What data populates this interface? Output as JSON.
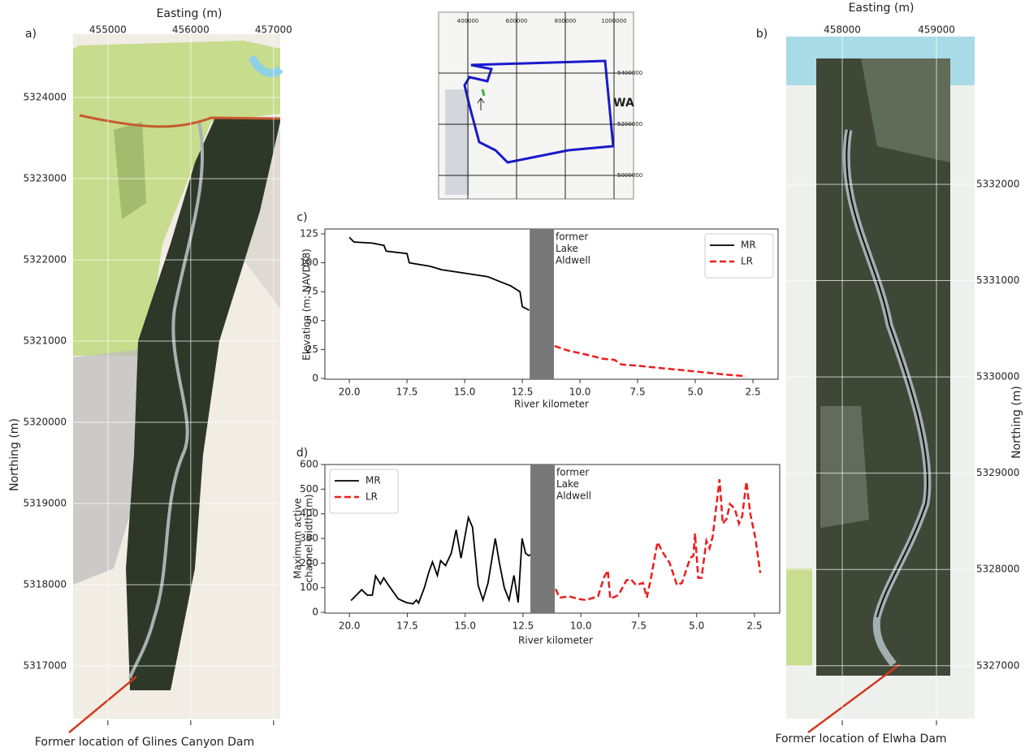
{
  "chart_data": [
    {
      "type": "map",
      "panel_label": "a)",
      "xlabel": "Easting (m)",
      "ylabel": "Northing (m)",
      "xlim": [
        454580,
        457080
      ],
      "ylim": [
        5316350,
        5324780
      ],
      "xticks": [
        455000,
        456000,
        457000
      ],
      "yticks": [
        5317000,
        5318000,
        5319000,
        5320000,
        5321000,
        5322000,
        5323000,
        5324000
      ],
      "annotation": "Former location of Glines Canyon Dam"
    },
    {
      "type": "map",
      "annotation": "WA",
      "xlim": [
        280000,
        1080000
      ],
      "ylim": [
        4908000,
        5638000
      ],
      "xticks": [
        400000,
        600000,
        800000,
        1000000
      ],
      "yticks": [
        5000000,
        5200000,
        5400000
      ]
    },
    {
      "type": "line",
      "panel_label": "c)",
      "xlabel": "River kilometer",
      "ylabel": [
        "Elevation (m; NAVD88)"
      ],
      "xlim": [
        21.06,
        1.41
      ],
      "ylim": [
        -0.7,
        129.2
      ],
      "xticks": [
        {
          "value": 20,
          "label": "20.0"
        },
        17.5,
        {
          "value": 15,
          "label": "15.0"
        },
        12.5,
        {
          "value": 10,
          "label": "10.0"
        },
        7.5,
        {
          "value": 5,
          "label": "5.0"
        },
        2.5
      ],
      "yticks": [
        0,
        25,
        50,
        75,
        100,
        125
      ],
      "span": [
        12.18,
        11.13
      ],
      "span_label": [
        "former",
        "Lake",
        "Aldwell"
      ],
      "legend": "upper right",
      "series": [
        {
          "name": "MR",
          "color": "#000000",
          "linestyle": "solid",
          "x": [
            20.0,
            19.8,
            19.0,
            18.5,
            18.4,
            17.5,
            17.4,
            16.5,
            16.0,
            15.0,
            14.0,
            13.5,
            13.0,
            12.6,
            12.5,
            12.2
          ],
          "values": [
            122,
            118,
            117,
            115,
            110,
            108,
            100,
            97,
            94,
            91,
            88,
            84,
            80,
            75,
            62,
            59
          ]
        },
        {
          "name": "LR",
          "color": "#ee1c1c",
          "linestyle": "dashed",
          "x": [
            11.1,
            10.5,
            9.8,
            9.0,
            8.5,
            8.2,
            7.5,
            6.5,
            5.5,
            4.5,
            3.5,
            2.8
          ],
          "values": [
            28,
            24,
            21,
            17,
            16,
            12,
            11,
            9,
            7,
            5,
            3,
            2
          ]
        }
      ]
    },
    {
      "type": "line",
      "panel_label": "d)",
      "xlabel": "River kilometer",
      "ylabel": [
        "Maximum active",
        "channel width (m)"
      ],
      "xlim": [
        21.06,
        1.41
      ],
      "ylim": [
        -3,
        600
      ],
      "xticks": [
        {
          "value": 20,
          "label": "20.0"
        },
        17.5,
        {
          "value": 15,
          "label": "15.0"
        },
        12.5,
        {
          "value": 10,
          "label": "10.0"
        },
        7.5,
        {
          "value": 5,
          "label": "5.0"
        },
        2.5
      ],
      "yticks": [
        0,
        100,
        200,
        300,
        400,
        500,
        600
      ],
      "span": [
        12.18,
        11.13
      ],
      "span_label": [
        "former",
        "Lake",
        "Aldwell"
      ],
      "legend": "upper left",
      "series": [
        {
          "name": "MR",
          "color": "#000000",
          "linestyle": "solid",
          "x": [
            19.93,
            19.47,
            19.23,
            19.01,
            18.87,
            18.66,
            18.52,
            18.31,
            17.89,
            17.54,
            17.25,
            17.11,
            17.01,
            16.76,
            16.58,
            16.41,
            16.2,
            16.06,
            15.85,
            15.6,
            15.39,
            15.18,
            14.86,
            14.68,
            14.44,
            14.23,
            14.01,
            13.7,
            13.52,
            13.31,
            13.1,
            12.89,
            12.71,
            12.54,
            12.39,
            12.25,
            12.08
          ],
          "values": [
            48,
            92,
            70,
            70,
            148,
            115,
            140,
            110,
            55,
            40,
            35,
            50,
            38,
            100,
            160,
            205,
            150,
            210,
            190,
            240,
            335,
            220,
            385,
            345,
            110,
            50,
            120,
            300,
            200,
            100,
            50,
            150,
            40,
            300,
            240,
            230,
            240
          ]
        },
        {
          "name": "LR",
          "color": "#ee1c1c",
          "linestyle": "dashed",
          "x": [
            11.09,
            10.92,
            10.49,
            10.14,
            9.79,
            9.26,
            9.01,
            8.84,
            8.73,
            8.38,
            8.03,
            7.85,
            7.61,
            7.32,
            7.15,
            6.97,
            6.69,
            6.44,
            6.16,
            5.85,
            5.63,
            5.28,
            5.14,
            5.07,
            4.93,
            4.79,
            4.58,
            4.44,
            4.3,
            4.15,
            4.01,
            3.87,
            3.7,
            3.56,
            3.35,
            3.17,
            3.03,
            2.85,
            2.68,
            2.46,
            2.25
          ],
          "values": [
            95,
            60,
            65,
            55,
            50,
            65,
            140,
            170,
            55,
            70,
            130,
            135,
            110,
            120,
            60,
            140,
            285,
            240,
            200,
            110,
            120,
            220,
            230,
            320,
            140,
            140,
            290,
            260,
            310,
            430,
            540,
            360,
            380,
            440,
            420,
            360,
            390,
            530,
            400,
            300,
            160
          ]
        }
      ]
    },
    {
      "type": "map",
      "panel_label": "b)",
      "xlabel": "Easting (m)",
      "ylabel": "Northing (m)",
      "xlim": [
        457405,
        459405
      ],
      "ylim": [
        5326450,
        5333535
      ],
      "xticks": [
        458000,
        459000
      ],
      "yticks": [
        5327000,
        5328000,
        5329000,
        5330000,
        5331000,
        5332000
      ],
      "annotation": "Former location of Elwha Dam"
    }
  ]
}
